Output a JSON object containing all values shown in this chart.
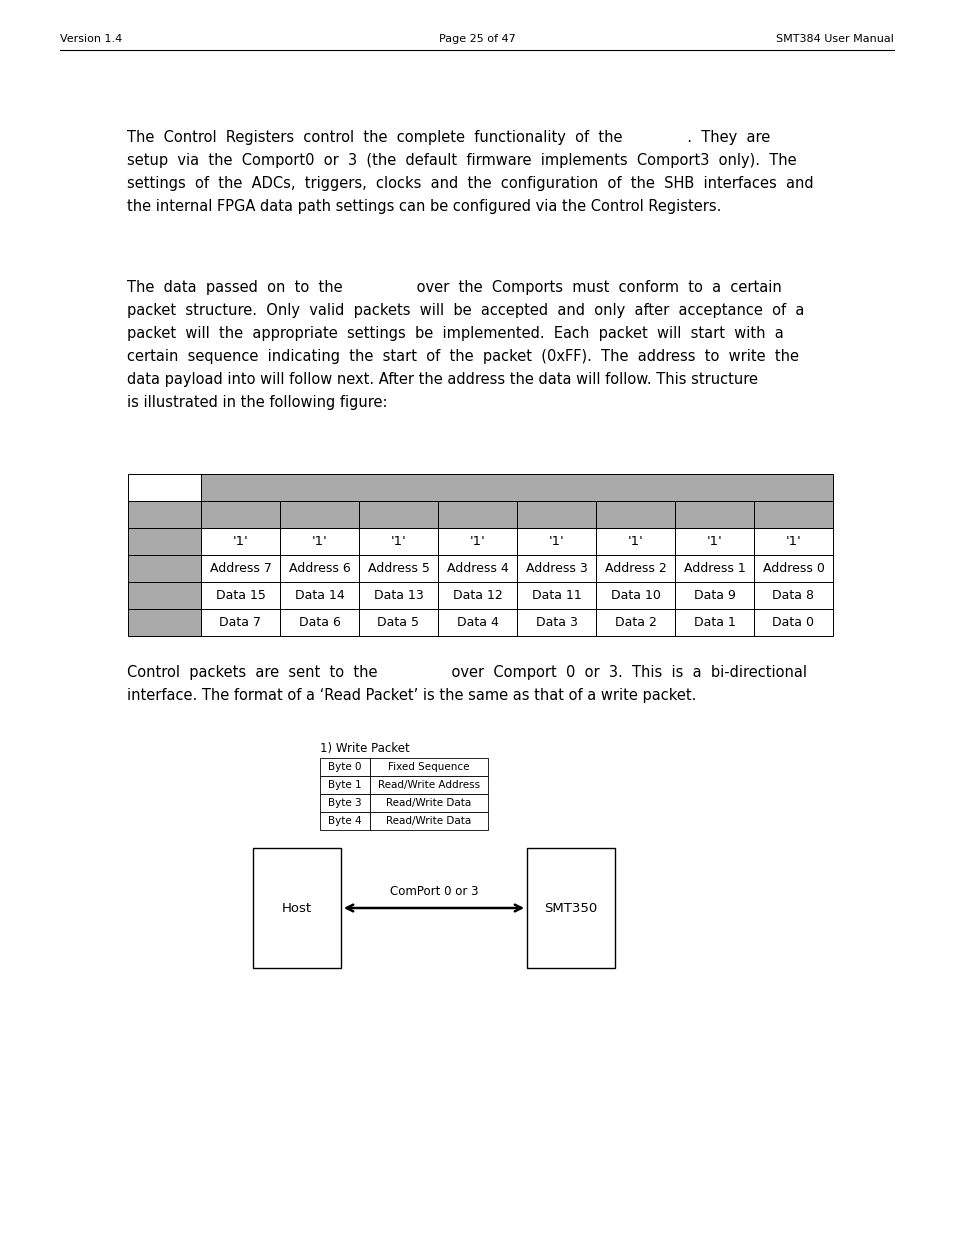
{
  "header_left": "Version 1.4",
  "header_center": "Page 25 of 47",
  "header_right": "SMT384 User Manual",
  "para1_lines": [
    "The  Control  Registers  control  the  complete  functionality  of  the              .  They  are",
    "setup  via  the  Comport0  or  3  (the  default  firmware  implements  Comport3  only).  The",
    "settings  of  the  ADCs,  triggers,  clocks  and  the  configuration  of  the  SHB  interfaces  and",
    "the internal FPGA data path settings can be configured via the Control Registers."
  ],
  "para2_lines": [
    "The  data  passed  on  to  the                over  the  Comports  must  conform  to  a  certain",
    "packet  structure.  Only  valid  packets  will  be  accepted  and  only  after  acceptance  of  a",
    "packet  will  the  appropriate  settings  be  implemented.  Each  packet  will  start  with  a",
    "certain  sequence  indicating  the  start  of  the  packet  (0xFF).  The  address  to  write  the",
    "data payload into will follow next. After the address the data will follow. This structure",
    "is illustrated in the following figure:"
  ],
  "table_row2_cols": [
    "'1'",
    "'1'",
    "'1'",
    "'1'",
    "'1'",
    "'1'",
    "'1'",
    "'1'"
  ],
  "table_row3_cols": [
    "Address 7",
    "Address 6",
    "Address 5",
    "Address 4",
    "Address 3",
    "Address 2",
    "Address 1",
    "Address 0"
  ],
  "table_row4_cols": [
    "Data 15",
    "Data 14",
    "Data 13",
    "Data 12",
    "Data 11",
    "Data 10",
    "Data 9",
    "Data 8"
  ],
  "table_row5_cols": [
    "Data 7",
    "Data 6",
    "Data 5",
    "Data 4",
    "Data 3",
    "Data 2",
    "Data 1",
    "Data 0"
  ],
  "gray_color": "#aaaaaa",
  "para3_lines": [
    "Control  packets  are  sent  to  the                over  Comport  0  or  3.  This  is  a  bi-directional",
    "interface. The format of a ‘Read Packet’ is the same as that of a write packet."
  ],
  "write_packet_label": "1) Write Packet",
  "write_table": [
    [
      "Byte 0",
      "Fixed Sequence"
    ],
    [
      "Byte 1",
      "Read/Write Address"
    ],
    [
      "Byte 3",
      "Read/Write Data"
    ],
    [
      "Byte 4",
      "Read/Write Data"
    ]
  ],
  "host_label": "Host",
  "arrow_label": "ComPort 0 or 3",
  "smt350_label": "SMT350",
  "bg_color": "#ffffff"
}
